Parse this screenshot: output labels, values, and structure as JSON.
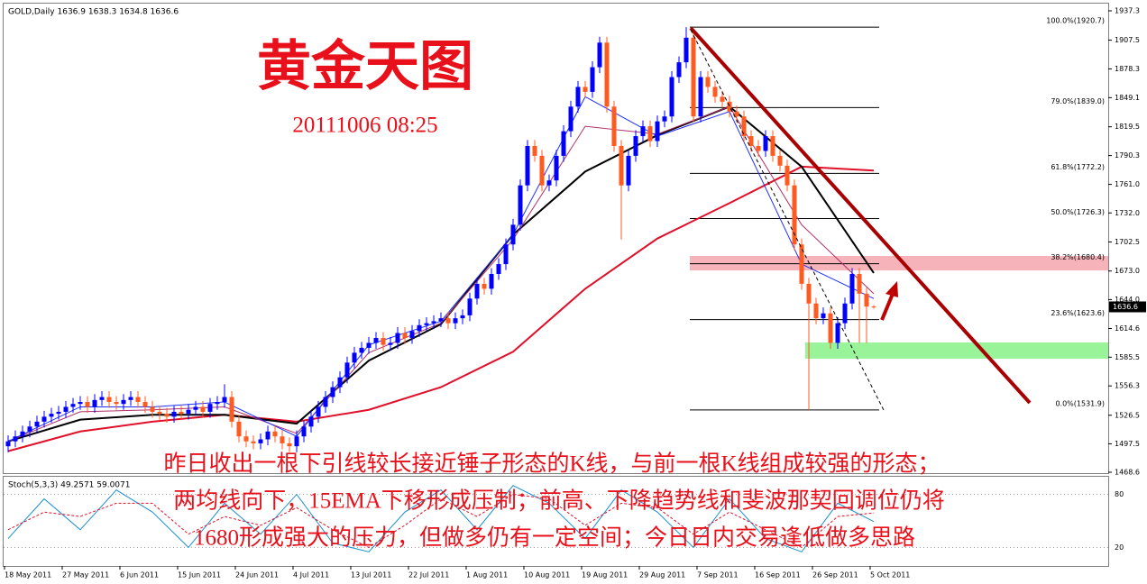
{
  "chart_data": [
    {
      "type": "candlestick",
      "info": "GOLD,Daily  1636.9 1638.3 1634.8 1636.6",
      "title": "黄金天图",
      "subtitle": "20111006 08:25",
      "annotations": [
        "昨日收出一根下引线较长接近锤子形态的K线，与前一根K线组成较强的形态；",
        "两均线向下，15EMA下移形成压制；前高、下降趋势线和斐波那契回调位仍将",
        "1680形成强大的压力，但做多仍有一定空间；今日日内交易逢低做多思路"
      ],
      "categories": [
        "18 May 2011",
        null,
        null,
        null,
        null,
        null,
        null,
        null,
        "27 May 2011",
        null,
        null,
        null,
        null,
        null,
        null,
        null,
        "6 Jun 2011",
        null,
        null,
        null,
        null,
        null,
        null,
        null,
        "15 Jun 2011",
        null,
        null,
        null,
        null,
        null,
        null,
        null,
        "24 Jun 2011",
        null,
        null,
        null,
        null,
        null,
        null,
        null,
        "4 Jul 2011",
        null,
        null,
        null,
        null,
        null,
        null,
        null,
        "13 Jul 2011",
        null,
        null,
        null,
        null,
        null,
        null,
        null,
        "22 Jul 2011",
        null,
        null,
        null,
        null,
        null,
        null,
        null,
        "1 Aug 2011",
        null,
        null,
        null,
        null,
        null,
        null,
        null,
        "10 Aug 2011",
        null,
        null,
        null,
        null,
        null,
        null,
        null,
        "19 Aug 2011",
        null,
        null,
        null,
        null,
        null,
        null,
        null,
        "29 Aug 2011",
        null,
        null,
        null,
        null,
        null,
        null,
        null,
        "7 Sep 2011",
        null,
        null,
        null,
        null,
        null,
        null,
        null,
        "16 Sep 2011",
        null,
        null,
        null,
        null,
        null,
        null,
        null,
        "26 Sep 2011",
        null,
        null,
        null,
        null,
        null,
        null,
        null,
        "5 Oct 2011"
      ],
      "open": [
        1495,
        1500,
        1505,
        1510,
        1515,
        1520,
        1525,
        1528,
        1530,
        1535,
        1538,
        1540,
        1535,
        1542,
        1545,
        1540,
        1538,
        1542,
        1545,
        1540,
        1535,
        1530,
        1528,
        1525,
        1530,
        1528,
        1532,
        1535,
        1530,
        1538,
        1540,
        1545,
        1520,
        1505,
        1500,
        1498,
        1502,
        1510,
        1505,
        1498,
        1495,
        1505,
        1515,
        1525,
        1535,
        1545,
        1555,
        1565,
        1580,
        1590,
        1595,
        1600,
        1605,
        1598,
        1600,
        1610,
        1605,
        1612,
        1618,
        1620,
        1622,
        1625,
        1620,
        1625,
        1628,
        1645,
        1660,
        1655,
        1670,
        1680,
        1700,
        1720,
        1760,
        1800,
        1790,
        1760,
        1765,
        1790,
        1815,
        1840,
        1860,
        1855,
        1880,
        1905,
        1840,
        1800,
        1760,
        1790,
        1810,
        1820,
        1805,
        1825,
        1830,
        1870,
        1885,
        1910,
        1830,
        1870,
        1860,
        1850,
        1845,
        1835,
        1830,
        1810,
        1800,
        1795,
        1810,
        1790,
        1780,
        1760,
        1700,
        1660,
        1640,
        1625,
        1630,
        1600,
        1620,
        1640,
        1670,
        1650,
        1636.9
      ],
      "high": [
        1506,
        1511,
        1516,
        1521,
        1526,
        1531,
        1534,
        1536,
        1541,
        1544,
        1546,
        1546,
        1548,
        1551,
        1551,
        1546,
        1548,
        1551,
        1551,
        1546,
        1541,
        1536,
        1534,
        1536,
        1536,
        1538,
        1541,
        1541,
        1544,
        1546,
        1558,
        1551,
        1526,
        1511,
        1506,
        1508,
        1516,
        1516,
        1511,
        1504,
        1511,
        1521,
        1531,
        1541,
        1551,
        1561,
        1571,
        1586,
        1596,
        1601,
        1606,
        1611,
        1611,
        1606,
        1616,
        1616,
        1618,
        1624,
        1626,
        1628,
        1631,
        1631,
        1631,
        1634,
        1651,
        1666,
        1666,
        1676,
        1686,
        1706,
        1726,
        1766,
        1806,
        1806,
        1796,
        1771,
        1796,
        1821,
        1846,
        1866,
        1866,
        1886,
        1911,
        1911,
        1846,
        1806,
        1796,
        1816,
        1826,
        1826,
        1831,
        1836,
        1876,
        1891,
        1920.7,
        1916,
        1876,
        1876,
        1866,
        1856,
        1851,
        1841,
        1836,
        1816,
        1806,
        1816,
        1816,
        1796,
        1786,
        1766,
        1706,
        1666,
        1646,
        1636,
        1636,
        1626,
        1646,
        1676,
        1676,
        1656,
        1638.3
      ],
      "low": [
        1489,
        1494,
        1499,
        1504,
        1509,
        1514,
        1519,
        1522,
        1524,
        1529,
        1532,
        1529,
        1529,
        1536,
        1534,
        1532,
        1532,
        1536,
        1534,
        1529,
        1524,
        1522,
        1519,
        1519,
        1522,
        1522,
        1526,
        1524,
        1524,
        1532,
        1534,
        1514,
        1499,
        1494,
        1492,
        1492,
        1496,
        1499,
        1492,
        1489,
        1489,
        1499,
        1509,
        1519,
        1529,
        1539,
        1549,
        1559,
        1574,
        1584,
        1589,
        1594,
        1592,
        1592,
        1594,
        1599,
        1599,
        1606,
        1612,
        1614,
        1616,
        1614,
        1614,
        1619,
        1622,
        1639,
        1649,
        1649,
        1664,
        1674,
        1694,
        1714,
        1754,
        1784,
        1754,
        1754,
        1759,
        1784,
        1809,
        1834,
        1849,
        1849,
        1874,
        1834,
        1794,
        1705,
        1754,
        1784,
        1804,
        1799,
        1799,
        1819,
        1824,
        1864,
        1879,
        1824,
        1824,
        1854,
        1844,
        1839,
        1829,
        1824,
        1804,
        1794,
        1789,
        1789,
        1784,
        1774,
        1754,
        1694,
        1654,
        1531.9,
        1619,
        1619,
        1594,
        1594,
        1614,
        1634,
        1600,
        1600,
        1634.8
      ],
      "close": [
        1500,
        1505,
        1510,
        1515,
        1520,
        1525,
        1528,
        1530,
        1535,
        1538,
        1540,
        1535,
        1542,
        1545,
        1540,
        1538,
        1542,
        1545,
        1540,
        1535,
        1530,
        1528,
        1525,
        1530,
        1528,
        1532,
        1535,
        1530,
        1538,
        1540,
        1545,
        1520,
        1505,
        1500,
        1498,
        1502,
        1510,
        1505,
        1498,
        1495,
        1505,
        1515,
        1525,
        1535,
        1545,
        1555,
        1565,
        1580,
        1590,
        1595,
        1600,
        1605,
        1598,
        1600,
        1610,
        1605,
        1612,
        1618,
        1620,
        1622,
        1625,
        1620,
        1625,
        1628,
        1645,
        1660,
        1655,
        1670,
        1680,
        1700,
        1720,
        1760,
        1800,
        1790,
        1760,
        1765,
        1790,
        1815,
        1840,
        1860,
        1855,
        1880,
        1905,
        1840,
        1800,
        1760,
        1790,
        1810,
        1820,
        1805,
        1825,
        1830,
        1870,
        1885,
        1910,
        1830,
        1870,
        1860,
        1850,
        1845,
        1835,
        1830,
        1810,
        1800,
        1795,
        1810,
        1790,
        1780,
        1760,
        1700,
        1660,
        1640,
        1625,
        1630,
        1600,
        1620,
        1640,
        1670,
        1650,
        1636.9,
        1636.6
      ],
      "up_color": "#0000ff",
      "down_color": "#ff5a1f",
      "last_price": 1636.6,
      "ylim": [
        1468.6,
        1937.3
      ],
      "yticks": [
        1937.3,
        1907.5,
        1878.3,
        1849.1,
        1819.5,
        1790.3,
        {
          "value": 1761,
          "label": "1761.0"
        },
        {
          "value": 1732,
          "label": "1732.0"
        },
        1702.5,
        {
          "value": 1673,
          "label": "1673.0"
        },
        {
          "value": 1644,
          "label": "1644.0"
        },
        1614.6,
        1585.5,
        1556.3,
        1526.5,
        1497.5,
        1468.6
      ],
      "overlays": [
        {
          "color": "#e0102a",
          "x": [
            0,
            10,
            20,
            30,
            40,
            50,
            60,
            70,
            80,
            90,
            100,
            110,
            120
          ],
          "values": [
            1490,
            1510,
            1520,
            1527,
            1520,
            1532,
            1555,
            1591,
            1655,
            1706,
            1742,
            1779,
            1775
          ]
        },
        {
          "color": "#000000",
          "x": [
            0,
            10,
            20,
            30,
            40,
            50,
            60,
            70,
            80,
            90,
            100,
            110,
            120
          ],
          "values": [
            1500,
            1522,
            1527,
            1527,
            1518,
            1582,
            1619,
            1710,
            1774,
            1811,
            1840,
            1779,
            1671
          ]
        },
        {
          "color": "#b0306a",
          "x": [
            0,
            10,
            20,
            30,
            40,
            50,
            60,
            70,
            80,
            90,
            100,
            110,
            120
          ],
          "values": [
            1500,
            1530,
            1532,
            1535,
            1508,
            1590,
            1620,
            1705,
            1820,
            1812,
            1840,
            1720,
            1650
          ]
        },
        {
          "color": "#2030ff",
          "x": [
            0,
            10,
            20,
            30,
            40,
            50,
            60,
            70,
            80,
            90,
            100,
            110,
            120
          ],
          "values": [
            1500,
            1535,
            1535,
            1540,
            1505,
            1598,
            1622,
            1710,
            1850,
            1810,
            1835,
            1680,
            1645
          ]
        }
      ],
      "fib_levels": [
        {
          "value": 1920.7,
          "label": "100.0%(1920.7)"
        },
        {
          "value": 1839,
          "label": "79.0%(1839.0)"
        },
        {
          "value": 1772.2,
          "label": "61.8%(1772.2)"
        },
        {
          "value": 1726.3,
          "label": "50.0%(1726.3)"
        },
        {
          "value": 1680.4,
          "label": "38.2%(1680.4)"
        },
        {
          "value": 1623.6,
          "label": "23.6%(1623.6)"
        },
        {
          "value": 1531.9,
          "label": "0.0%(1531.9)"
        }
      ],
      "zones": [
        {
          "start": 94.5,
          "from": 1673.6,
          "to": 1688.3,
          "color": "#f4a0a8"
        },
        {
          "start": 110.5,
          "from": 1583.9,
          "to": 1600.4,
          "color": "#80f080"
        }
      ]
    },
    {
      "type": "line",
      "title": "Stoch(5,3,3) 49.2571 59.0071",
      "ylim": [
        0,
        100
      ],
      "yticks": [
        80,
        20
      ],
      "series": [
        {
          "color": "#1a8fd0",
          "dash": false,
          "x": [
            0,
            5,
            10,
            15,
            20,
            25,
            30,
            35,
            40,
            45,
            50,
            55,
            60,
            65,
            70,
            75,
            80,
            85,
            90,
            95,
            100,
            105,
            110,
            115,
            120
          ],
          "values": [
            30,
            75,
            40,
            85,
            60,
            20,
            70,
            35,
            80,
            25,
            15,
            60,
            85,
            40,
            90,
            70,
            30,
            85,
            60,
            20,
            75,
            30,
            15,
            70,
            49.2571
          ]
        },
        {
          "color": "#e0102a",
          "dash": true,
          "x": [
            0,
            5,
            10,
            15,
            20,
            25,
            30,
            35,
            40,
            45,
            50,
            55,
            60,
            65,
            70,
            75,
            80,
            85,
            90,
            95,
            100,
            105,
            110,
            115,
            120
          ],
          "values": [
            40,
            60,
            55,
            70,
            70,
            35,
            55,
            45,
            65,
            40,
            20,
            45,
            75,
            55,
            80,
            75,
            45,
            70,
            65,
            35,
            60,
            40,
            20,
            55,
            59.0071
          ]
        }
      ]
    }
  ]
}
